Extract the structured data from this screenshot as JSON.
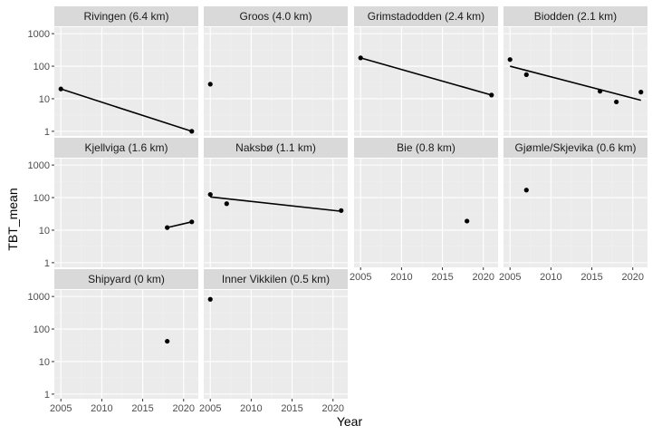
{
  "chart_data": {
    "type": "scatter",
    "facet_by": "station",
    "layout": {
      "columns": 4,
      "rows": 3
    },
    "xlabel": "Year",
    "ylabel": "TBT_mean",
    "xlim": [
      2004.2,
      2021.8
    ],
    "ylim": [
      0.72,
      1580
    ],
    "yscale": "log",
    "xticks": [
      2005,
      2010,
      2015,
      2020
    ],
    "xtick_labels": [
      "2005",
      "2010",
      "2015",
      "2020"
    ],
    "yticks": [
      1,
      10,
      100,
      1000
    ],
    "ytick_labels": [
      "1",
      "10",
      "100",
      "1000"
    ],
    "grid": true,
    "legend": "none",
    "colors": {
      "panel_background": "#ebebeb",
      "strip_background": "#d9d9d9",
      "grid_major": "#ffffff",
      "grid_minor": "#f2f2f2",
      "points": "#000000",
      "trend_line": "#000000"
    },
    "panels": [
      {
        "title": "Rivingen (6.4 km)",
        "points": [
          {
            "x": 2005,
            "y": 20
          },
          {
            "x": 2021,
            "y": 1
          }
        ],
        "trend": [
          {
            "x": 2005,
            "y": 20
          },
          {
            "x": 2021,
            "y": 1
          }
        ]
      },
      {
        "title": "Groos (4.0 km)",
        "points": [
          {
            "x": 2005,
            "y": 28
          }
        ],
        "trend": null
      },
      {
        "title": "Grimstadodden (2.4 km)",
        "points": [
          {
            "x": 2005,
            "y": 180
          },
          {
            "x": 2021,
            "y": 13
          }
        ],
        "trend": [
          {
            "x": 2005,
            "y": 180
          },
          {
            "x": 2021,
            "y": 13
          }
        ]
      },
      {
        "title": "Biodden (2.1 km)",
        "points": [
          {
            "x": 2005,
            "y": 160
          },
          {
            "x": 2007,
            "y": 55
          },
          {
            "x": 2016,
            "y": 17
          },
          {
            "x": 2018,
            "y": 8
          },
          {
            "x": 2021,
            "y": 16
          }
        ],
        "trend": [
          {
            "x": 2005,
            "y": 100
          },
          {
            "x": 2021,
            "y": 9
          }
        ]
      },
      {
        "title": "Kjellviga (1.6 km)",
        "points": [
          {
            "x": 2018,
            "y": 12
          },
          {
            "x": 2021,
            "y": 18
          }
        ],
        "trend": [
          {
            "x": 2018,
            "y": 12
          },
          {
            "x": 2021,
            "y": 18
          }
        ]
      },
      {
        "title": "Naksbø (1.1 km)",
        "points": [
          {
            "x": 2005,
            "y": 125
          },
          {
            "x": 2007,
            "y": 65
          },
          {
            "x": 2021,
            "y": 40
          }
        ],
        "trend": [
          {
            "x": 2005,
            "y": 105
          },
          {
            "x": 2021,
            "y": 38
          }
        ]
      },
      {
        "title": "Bie (0.8 km)",
        "points": [
          {
            "x": 2018,
            "y": 19
          }
        ],
        "trend": null
      },
      {
        "title": "Gjømle/Skjevika (0.6 km)",
        "points": [
          {
            "x": 2007,
            "y": 170
          }
        ],
        "trend": null
      },
      {
        "title": "Shipyard (0 km)",
        "points": [
          {
            "x": 2018,
            "y": 42
          }
        ],
        "trend": null
      },
      {
        "title": "Inner Vikkilen (0.5 km)",
        "points": [
          {
            "x": 2005,
            "y": 820
          }
        ],
        "trend": null
      }
    ]
  }
}
